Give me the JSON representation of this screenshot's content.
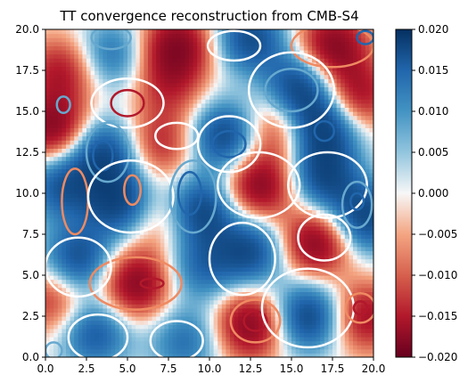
{
  "chart_data": {
    "type": "heatmap",
    "title": "TT convergence reconstruction from CMB-S4",
    "xlabel": "",
    "ylabel": "",
    "xlim": [
      0.0,
      20.0
    ],
    "ylim": [
      0.0,
      20.0
    ],
    "x_ticks": [
      "0.0",
      "2.5",
      "5.0",
      "7.5",
      "10.0",
      "12.5",
      "15.0",
      "17.5",
      "20.0"
    ],
    "y_ticks": [
      "0.0",
      "2.5",
      "5.0",
      "7.5",
      "10.0",
      "12.5",
      "15.0",
      "17.5",
      "20.0"
    ],
    "colormap": "RdBu",
    "color_low": "#67001f",
    "color_mid": "#f7f7f7",
    "color_high": "#053061",
    "colorbar": {
      "vmin": -0.02,
      "vmax": 0.02,
      "ticks": [
        "0.020",
        "0.015",
        "0.010",
        "0.005",
        "0.000",
        "−0.005",
        "−0.010",
        "−0.015",
        "−0.020"
      ]
    },
    "contours": true,
    "grid": false,
    "field_blobs": [
      {
        "x": 8.0,
        "y": 19.0,
        "amp": -1.0
      },
      {
        "x": 12.5,
        "y": 19.5,
        "amp": 0.9
      },
      {
        "x": 17.5,
        "y": 19.0,
        "amp": -1.0
      },
      {
        "x": 4.0,
        "y": 18.5,
        "amp": 0.6
      },
      {
        "x": 1.0,
        "y": 17.5,
        "amp": -0.7
      },
      {
        "x": 7.5,
        "y": 16.5,
        "amp": -0.5
      },
      {
        "x": 15.5,
        "y": 16.5,
        "amp": 1.0
      },
      {
        "x": 19.0,
        "y": 16.0,
        "amp": -0.8
      },
      {
        "x": 0.5,
        "y": 14.0,
        "amp": -1.0
      },
      {
        "x": 3.5,
        "y": 12.5,
        "amp": 0.9
      },
      {
        "x": 7.0,
        "y": 13.0,
        "amp": -0.6
      },
      {
        "x": 11.0,
        "y": 13.5,
        "amp": 1.0
      },
      {
        "x": 14.0,
        "y": 14.0,
        "amp": -0.6
      },
      {
        "x": 17.0,
        "y": 14.0,
        "amp": 1.0
      },
      {
        "x": 1.0,
        "y": 10.5,
        "amp": 0.8
      },
      {
        "x": 4.5,
        "y": 9.5,
        "amp": 1.0
      },
      {
        "x": 9.5,
        "y": 9.0,
        "amp": 1.0
      },
      {
        "x": 13.0,
        "y": 10.5,
        "amp": -1.0
      },
      {
        "x": 17.0,
        "y": 11.0,
        "amp": 0.9
      },
      {
        "x": 19.5,
        "y": 8.5,
        "amp": 1.0
      },
      {
        "x": 7.0,
        "y": 8.5,
        "amp": -0.4
      },
      {
        "x": 16.5,
        "y": 7.0,
        "amp": -1.0
      },
      {
        "x": 2.0,
        "y": 6.0,
        "amp": 0.9
      },
      {
        "x": 5.5,
        "y": 4.5,
        "amp": -1.0
      },
      {
        "x": 9.5,
        "y": 5.5,
        "amp": 0.6
      },
      {
        "x": 12.5,
        "y": 6.5,
        "amp": 0.9
      },
      {
        "x": 0.5,
        "y": 3.5,
        "amp": -0.6
      },
      {
        "x": 3.0,
        "y": 1.5,
        "amp": 0.8
      },
      {
        "x": 12.5,
        "y": 2.0,
        "amp": -1.0
      },
      {
        "x": 16.0,
        "y": 2.5,
        "amp": 1.0
      },
      {
        "x": 19.5,
        "y": 2.5,
        "amp": -0.8
      },
      {
        "x": 8.5,
        "y": 1.0,
        "amp": 0.6
      }
    ],
    "contour_rings": [
      {
        "x": 4.0,
        "y": 19.5,
        "rx": 1.2,
        "ry": 0.7,
        "level": "mid-positive"
      },
      {
        "x": 11.5,
        "y": 19.0,
        "rx": 1.6,
        "ry": 0.9,
        "level": "zero"
      },
      {
        "x": 17.5,
        "y": 19.0,
        "rx": 2.5,
        "ry": 1.3,
        "level": "mid-negative"
      },
      {
        "x": 19.5,
        "y": 19.5,
        "rx": 0.5,
        "ry": 0.4,
        "level": "high-positive"
      },
      {
        "x": 5.0,
        "y": 15.5,
        "rx": 1.0,
        "ry": 0.8,
        "level": "high-negative"
      },
      {
        "x": 5.0,
        "y": 15.5,
        "rx": 2.2,
        "ry": 1.5,
        "level": "zero"
      },
      {
        "x": 1.1,
        "y": 15.4,
        "rx": 0.4,
        "ry": 0.5,
        "level": "mid-positive"
      },
      {
        "x": 15.0,
        "y": 16.3,
        "rx": 1.6,
        "ry": 1.3,
        "level": "mid-positive"
      },
      {
        "x": 15.0,
        "y": 16.3,
        "rx": 2.6,
        "ry": 2.3,
        "level": "zero"
      },
      {
        "x": 17.0,
        "y": 13.8,
        "rx": 0.6,
        "ry": 0.6,
        "level": "high-positive"
      },
      {
        "x": 3.5,
        "y": 12.3,
        "rx": 0.6,
        "ry": 0.9,
        "level": "high-positive"
      },
      {
        "x": 3.8,
        "y": 12.5,
        "rx": 1.3,
        "ry": 1.8,
        "level": "mid-positive"
      },
      {
        "x": 11.2,
        "y": 13.0,
        "rx": 1.0,
        "ry": 0.8,
        "level": "high-positive"
      },
      {
        "x": 11.2,
        "y": 13.0,
        "rx": 1.9,
        "ry": 1.7,
        "level": "zero"
      },
      {
        "x": 8.0,
        "y": 13.5,
        "rx": 1.3,
        "ry": 0.8,
        "level": "zero"
      },
      {
        "x": 1.8,
        "y": 9.5,
        "rx": 0.8,
        "ry": 2.0,
        "level": "mid-negative"
      },
      {
        "x": 5.2,
        "y": 9.8,
        "rx": 2.6,
        "ry": 2.2,
        "level": "zero"
      },
      {
        "x": 5.3,
        "y": 10.2,
        "rx": 0.5,
        "ry": 0.9,
        "level": "mid-negative"
      },
      {
        "x": 8.8,
        "y": 10.0,
        "rx": 0.7,
        "ry": 1.3,
        "level": "high-positive"
      },
      {
        "x": 9.0,
        "y": 9.8,
        "rx": 1.4,
        "ry": 2.2,
        "level": "mid-positive"
      },
      {
        "x": 13.0,
        "y": 10.5,
        "rx": 2.5,
        "ry": 2.0,
        "level": "zero"
      },
      {
        "x": 17.2,
        "y": 10.5,
        "rx": 2.4,
        "ry": 2.0,
        "level": "zero"
      },
      {
        "x": 19.0,
        "y": 9.5,
        "rx": 0.4,
        "ry": 0.5,
        "level": "high-positive"
      },
      {
        "x": 19.0,
        "y": 9.3,
        "rx": 0.9,
        "ry": 1.4,
        "level": "mid-positive"
      },
      {
        "x": 17.0,
        "y": 7.3,
        "rx": 1.6,
        "ry": 1.4,
        "level": "zero"
      },
      {
        "x": 6.5,
        "y": 4.5,
        "rx": 0.7,
        "ry": 0.3,
        "level": "high-negative"
      },
      {
        "x": 5.5,
        "y": 4.5,
        "rx": 2.8,
        "ry": 1.6,
        "level": "mid-negative"
      },
      {
        "x": 2.0,
        "y": 5.5,
        "rx": 2.0,
        "ry": 1.8,
        "level": "zero"
      },
      {
        "x": 12.0,
        "y": 6.0,
        "rx": 2.0,
        "ry": 2.2,
        "level": "zero"
      },
      {
        "x": 12.8,
        "y": 2.2,
        "rx": 0.7,
        "ry": 0.6,
        "level": "high-negative"
      },
      {
        "x": 12.8,
        "y": 2.2,
        "rx": 1.5,
        "ry": 1.3,
        "level": "mid-negative"
      },
      {
        "x": 16.0,
        "y": 3.0,
        "rx": 2.8,
        "ry": 2.4,
        "level": "zero"
      },
      {
        "x": 19.2,
        "y": 3.0,
        "rx": 0.4,
        "ry": 0.4,
        "level": "high-negative"
      },
      {
        "x": 19.2,
        "y": 3.0,
        "rx": 0.9,
        "ry": 0.9,
        "level": "mid-negative"
      },
      {
        "x": 0.5,
        "y": 0.4,
        "rx": 0.5,
        "ry": 0.5,
        "level": "mid-positive"
      },
      {
        "x": 3.2,
        "y": 1.2,
        "rx": 1.8,
        "ry": 1.4,
        "level": "zero"
      },
      {
        "x": 8.0,
        "y": 1.0,
        "rx": 1.6,
        "ry": 1.2,
        "level": "zero"
      }
    ],
    "contour_colors": {
      "high-negative": "#b2182b",
      "mid-negative": "#ef8a62",
      "zero": "#ffffff",
      "mid-positive": "#67a9cf",
      "high-positive": "#2166ac"
    }
  }
}
